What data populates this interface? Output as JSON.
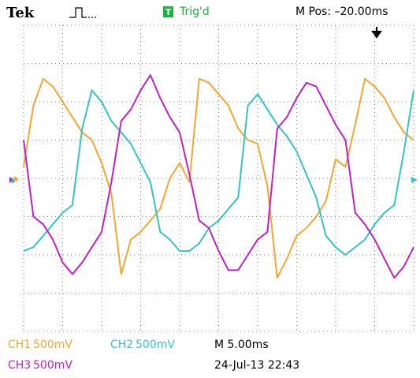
{
  "header": {
    "brand": "Tek",
    "trigger_badge": "T",
    "trigger_status": "Trig'd",
    "position": "M Pos: –20.00ms"
  },
  "chart_data": {
    "type": "line",
    "x": [
      0,
      0.25,
      0.5,
      0.75,
      1,
      1.25,
      1.5,
      1.75,
      2,
      2.25,
      2.5,
      2.75,
      3,
      3.25,
      3.5,
      3.75,
      4,
      4.25,
      4.5,
      4.75,
      5,
      5.25,
      5.5,
      5.75,
      6,
      6.25,
      6.5,
      6.75,
      7,
      7.25,
      7.5,
      7.75,
      8,
      8.25,
      8.5,
      8.75,
      9,
      9.25,
      9.5,
      9.75,
      10
    ],
    "series": [
      {
        "name": "CH1",
        "scale": "500mV",
        "color": "#f7a52c",
        "values": [
          0.3,
          1.9,
          2.6,
          2.4,
          2.0,
          1.6,
          1.2,
          1.0,
          0.4,
          -0.4,
          -2.5,
          -1.6,
          -1.4,
          -1.1,
          -0.8,
          0.0,
          0.4,
          -0.1,
          2.6,
          2.5,
          2.2,
          1.9,
          1.3,
          1.0,
          0.9,
          -0.2,
          -2.6,
          -2.1,
          -1.5,
          -1.3,
          -1.0,
          -0.6,
          0.5,
          0.3,
          1.4,
          2.6,
          2.4,
          2.1,
          1.6,
          1.2,
          1.0
        ]
      },
      {
        "name": "CH2",
        "scale": "500mV",
        "color": "#33c4c6",
        "values": [
          -1.9,
          -1.8,
          -1.5,
          -1.2,
          -0.9,
          -0.7,
          1.3,
          2.3,
          2.0,
          1.5,
          1.2,
          0.9,
          0.4,
          -0.1,
          -1.4,
          -1.6,
          -1.9,
          -1.9,
          -1.7,
          -1.3,
          -1.1,
          -0.8,
          -0.5,
          1.9,
          2.2,
          1.8,
          1.4,
          1.1,
          0.7,
          0.1,
          -0.5,
          -1.5,
          -1.8,
          -2.0,
          -1.8,
          -1.6,
          -1.2,
          -0.9,
          -0.7,
          0.7,
          2.3
        ]
      },
      {
        "name": "CH3",
        "scale": "500mV",
        "color": "#c21fc4",
        "values": [
          1.0,
          -1.0,
          -1.2,
          -1.6,
          -2.2,
          -2.5,
          -2.2,
          -1.8,
          -1.4,
          -0.1,
          1.5,
          1.8,
          2.3,
          2.7,
          2.1,
          1.6,
          1.2,
          0.1,
          -1.1,
          -1.3,
          -1.9,
          -2.4,
          -2.4,
          -2.0,
          -1.6,
          -1.4,
          1.3,
          1.6,
          2.1,
          2.5,
          2.4,
          1.9,
          1.4,
          1.0,
          -0.9,
          -1.2,
          -1.6,
          -2.1,
          -2.6,
          -2.3,
          -1.8
        ]
      }
    ],
    "xlim": [
      0,
      10
    ],
    "ylim": [
      -4,
      4
    ],
    "xticks": [
      0,
      1,
      2,
      3,
      4,
      5,
      6,
      7,
      8,
      9,
      10
    ],
    "yticks": [
      -4,
      -3,
      -2,
      -1,
      0,
      1,
      2,
      3,
      4
    ],
    "grid": true
  },
  "footer": {
    "timebase": "M 5.00ms",
    "timestamp": "24-Jul-13 22:43"
  }
}
